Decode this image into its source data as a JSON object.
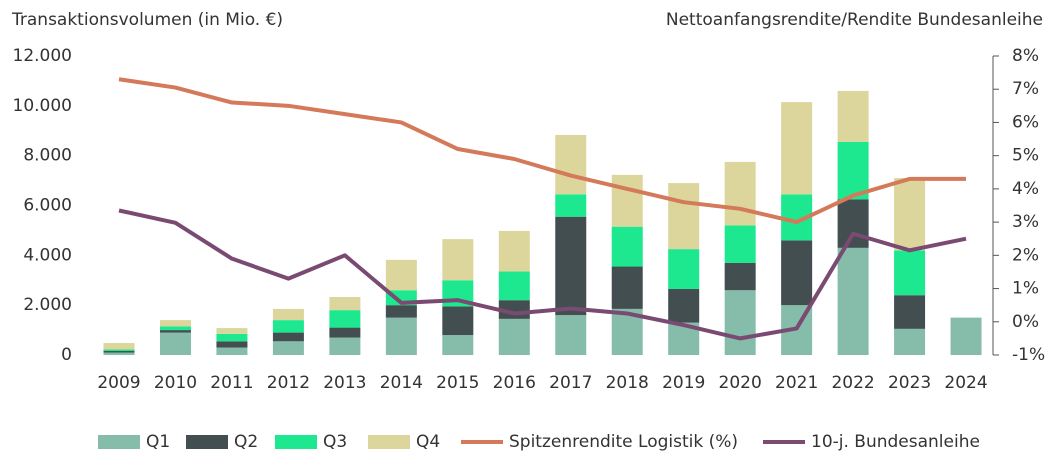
{
  "chart_data": {
    "type": "bar",
    "y_label": "Transaktionsvolumen (in Mio. €)",
    "y2_label": "Nettoanfangsrendite/Rendite Bundesanleihe",
    "categories": [
      "2009",
      "2010",
      "2011",
      "2012",
      "2013",
      "2014",
      "2015",
      "2016",
      "2017",
      "2018",
      "2019",
      "2020",
      "2021",
      "2022",
      "2023",
      "2024"
    ],
    "stacked": true,
    "series": [
      {
        "name": "Q1",
        "type": "bar",
        "color": "#85bcaa",
        "values": [
          100,
          900,
          300,
          550,
          700,
          1500,
          800,
          1450,
          1600,
          1850,
          1300,
          2600,
          2000,
          4300,
          1050,
          1500
        ]
      },
      {
        "name": "Q2",
        "type": "bar",
        "color": "#424e50",
        "values": [
          60,
          100,
          250,
          350,
          400,
          500,
          1150,
          750,
          3950,
          1700,
          1350,
          1100,
          2600,
          1950,
          1350,
          null
        ]
      },
      {
        "name": "Q3",
        "type": "bar",
        "color": "#1ee88f",
        "values": [
          60,
          150,
          300,
          500,
          700,
          600,
          1050,
          1150,
          900,
          1600,
          1600,
          1500,
          1850,
          2300,
          1800,
          null
        ]
      },
      {
        "name": "Q4",
        "type": "bar",
        "color": "#dcd69c",
        "values": [
          260,
          250,
          230,
          450,
          530,
          1220,
          1650,
          1630,
          2380,
          2080,
          2650,
          2550,
          3700,
          2050,
          2900,
          null
        ]
      },
      {
        "name": "Spitzenrendite Logistik (%)",
        "type": "line",
        "axis": "y2",
        "color": "#d4795a",
        "values": [
          7.3,
          7.05,
          6.6,
          6.5,
          6.25,
          6.0,
          5.2,
          4.9,
          4.4,
          4.0,
          3.6,
          3.4,
          3.0,
          3.8,
          4.3,
          4.3
        ]
      },
      {
        "name": "10-j. Bundesanleihe",
        "type": "line",
        "axis": "y2",
        "color": "#7a4a72",
        "values": [
          3.35,
          2.98,
          1.9,
          1.3,
          2.0,
          0.57,
          0.65,
          0.25,
          0.4,
          0.25,
          -0.1,
          -0.5,
          -0.2,
          2.65,
          2.15,
          2.5
        ]
      }
    ],
    "ylim": [
      0,
      12000
    ],
    "yticks": [
      0,
      {
        "value": 2000,
        "label": "2.000"
      },
      {
        "value": 4000,
        "label": "4.000"
      },
      {
        "value": 6000,
        "label": "6.000"
      },
      {
        "value": 8000,
        "label": "8.000"
      },
      {
        "value": 10000,
        "label": "10.000"
      },
      {
        "value": 12000,
        "label": "12.000"
      }
    ],
    "y2lim": [
      -1,
      8
    ],
    "y2ticks": [
      {
        "value": -1,
        "label": "-1%"
      },
      {
        "value": 0,
        "label": "0%"
      },
      {
        "value": 1,
        "label": "1%"
      },
      {
        "value": 2,
        "label": "2%"
      },
      {
        "value": 3,
        "label": "3%"
      },
      {
        "value": 4,
        "label": "4%"
      },
      {
        "value": 5,
        "label": "5%"
      },
      {
        "value": 6,
        "label": "6%"
      },
      {
        "value": 7,
        "label": "7%"
      },
      {
        "value": 8,
        "label": "8%"
      }
    ],
    "legend": "bottom"
  }
}
